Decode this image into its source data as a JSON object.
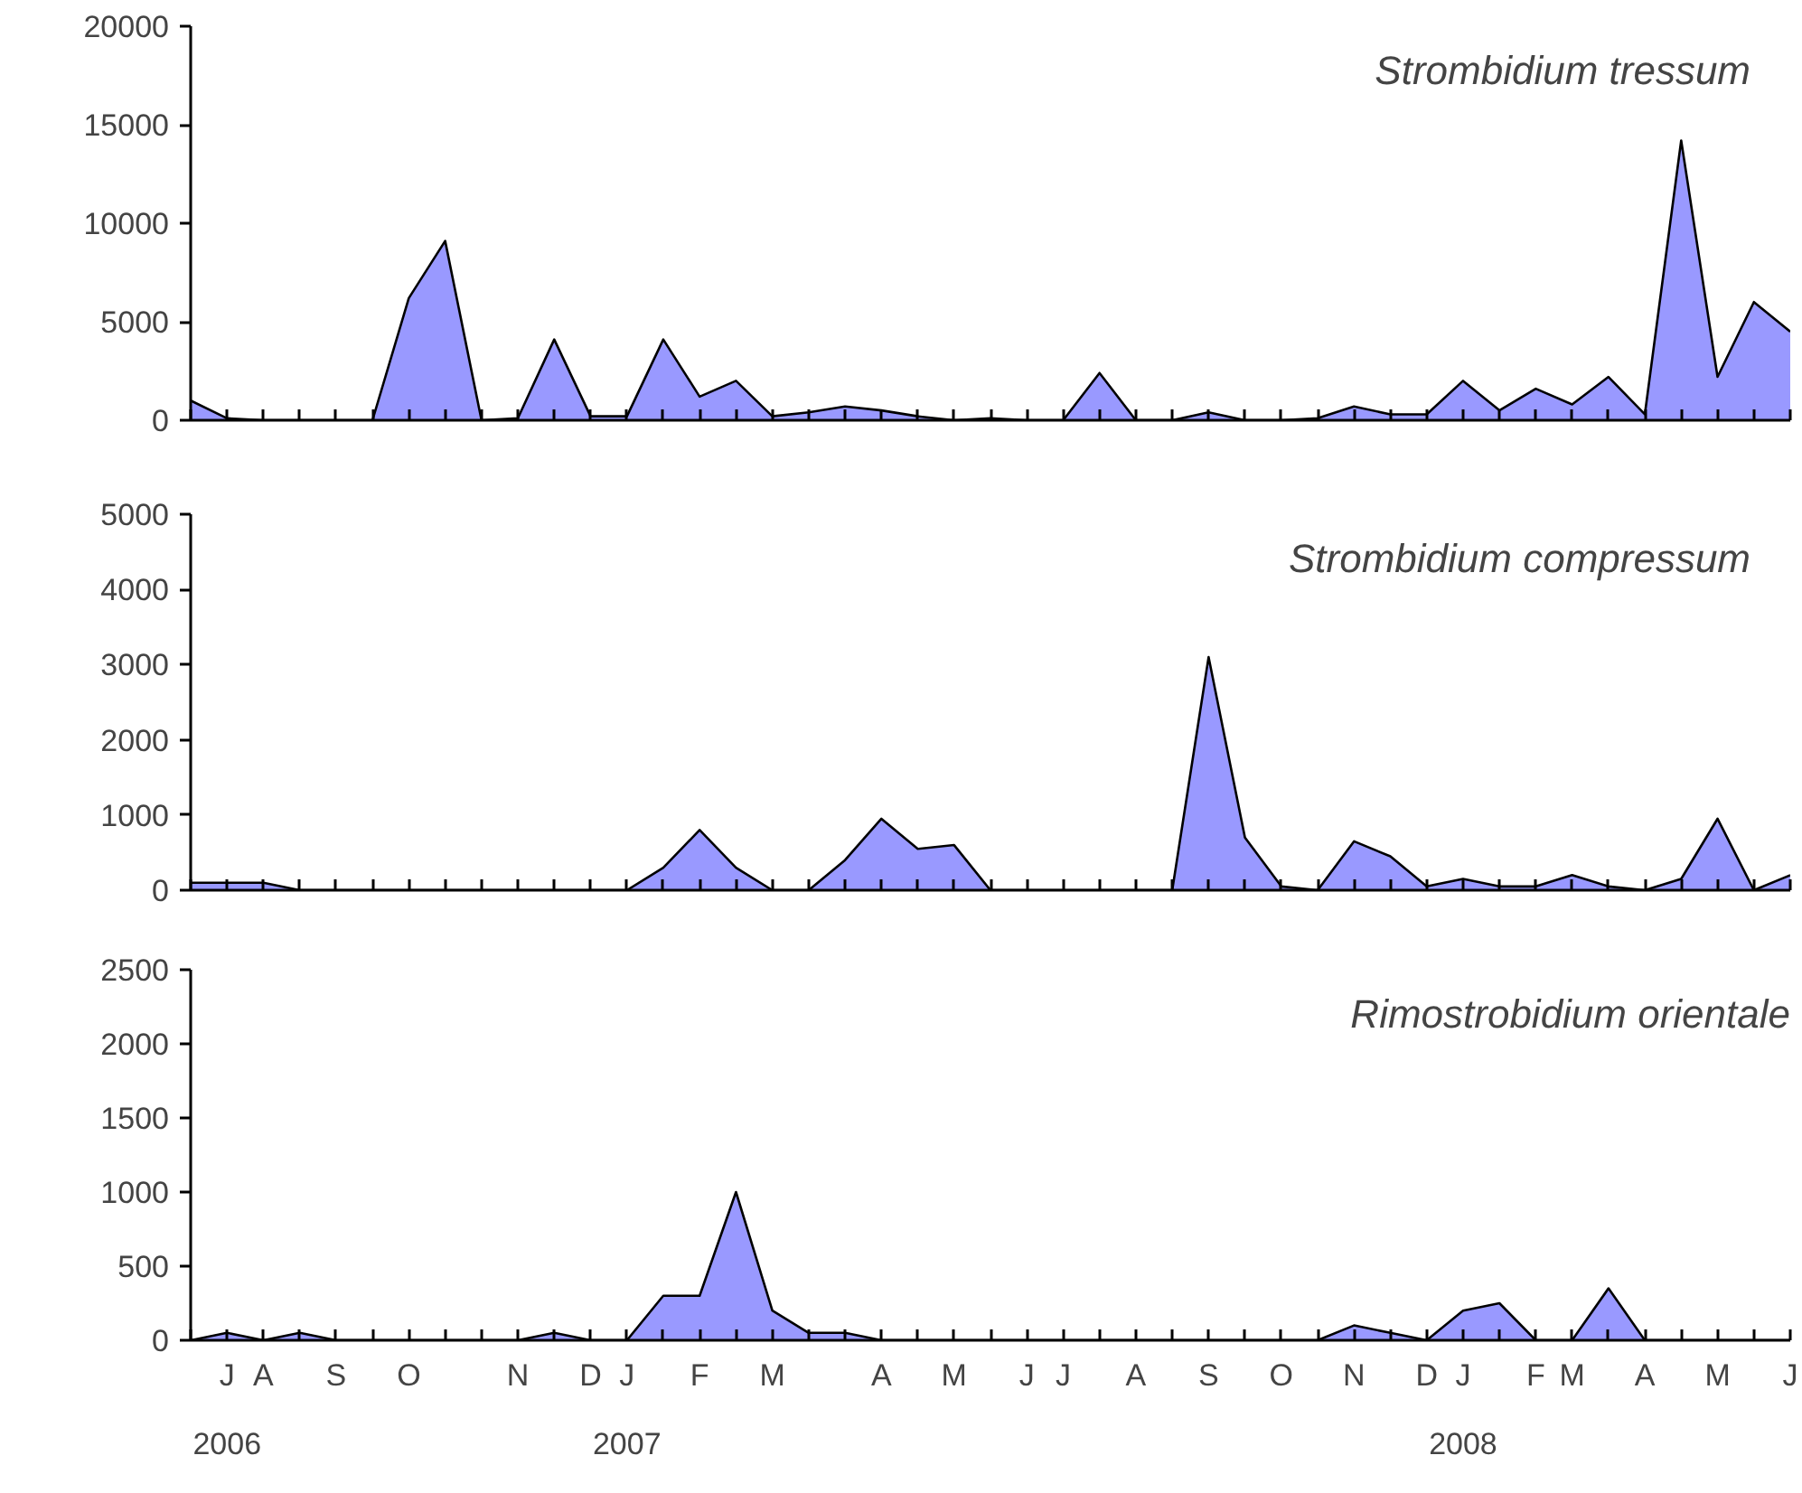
{
  "chart_data": [
    {
      "type": "area",
      "title": "Strombidium tressum",
      "tick_labels": "y",
      "grid": false,
      "ylim": [
        0,
        20000
      ],
      "yticks": [
        0,
        5000,
        10000,
        15000,
        20000
      ],
      "categories": [
        null,
        null,
        null,
        null,
        null,
        null,
        null,
        null,
        null,
        null,
        null,
        null,
        null,
        null,
        null,
        null,
        null,
        null,
        null,
        null,
        null,
        null,
        null,
        null,
        null,
        null,
        null,
        null,
        null,
        null,
        null,
        null,
        null,
        null,
        null,
        null,
        null,
        null,
        null,
        null,
        null,
        null,
        null,
        null,
        null
      ],
      "series": [
        {
          "color": "#9999ff",
          "values": [
            1000,
            100,
            0,
            0,
            0,
            0,
            6200,
            9100,
            0,
            100,
            4100,
            200,
            200,
            4100,
            1200,
            2000,
            200,
            400,
            700,
            500,
            200,
            0,
            100,
            0,
            0,
            2400,
            0,
            0,
            400,
            0,
            0,
            100,
            700,
            300,
            300,
            2000,
            500,
            1600,
            800,
            2200,
            300,
            14200,
            2200,
            6000,
            4500
          ]
        }
      ]
    },
    {
      "type": "area",
      "title": "Strombidium compressum",
      "tick_labels": "y",
      "grid": false,
      "ylim": [
        0,
        5000
      ],
      "yticks": [
        0,
        1000,
        2000,
        3000,
        4000,
        5000
      ],
      "categories": [
        null,
        null,
        null,
        null,
        null,
        null,
        null,
        null,
        null,
        null,
        null,
        null,
        null,
        null,
        null,
        null,
        null,
        null,
        null,
        null,
        null,
        null,
        null,
        null,
        null,
        null,
        null,
        null,
        null,
        null,
        null,
        null,
        null,
        null,
        null,
        null,
        null,
        null,
        null,
        null,
        null,
        null,
        null,
        null,
        null
      ],
      "series": [
        {
          "color": "#9999ff",
          "values": [
            100,
            100,
            100,
            0,
            0,
            0,
            0,
            0,
            0,
            0,
            0,
            0,
            0,
            300,
            800,
            300,
            0,
            0,
            400,
            950,
            550,
            600,
            0,
            0,
            0,
            0,
            0,
            0,
            3100,
            700,
            50,
            0,
            650,
            450,
            50,
            150,
            50,
            50,
            200,
            50,
            0,
            150,
            950,
            0,
            200
          ]
        }
      ]
    },
    {
      "type": "area",
      "title": "Rimostrobidium orientale",
      "grid": false,
      "ylim": [
        0,
        2500
      ],
      "yticks": [
        0,
        500,
        1000,
        1500,
        2000,
        2500
      ],
      "categories": [
        null,
        "J\n2006",
        "A",
        null,
        "S",
        null,
        "O",
        null,
        null,
        "N",
        null,
        "D",
        "J\n2007",
        null,
        "F",
        null,
        "M",
        null,
        null,
        "A",
        null,
        "M",
        null,
        "J",
        "J",
        null,
        "A",
        null,
        "S",
        null,
        "O",
        null,
        "N",
        null,
        "D",
        "J\n2008",
        null,
        "F",
        "M",
        null,
        "A",
        null,
        "M",
        null,
        "J"
      ],
      "series": [
        {
          "color": "#9999ff",
          "values": [
            0,
            50,
            0,
            50,
            0,
            0,
            0,
            0,
            0,
            0,
            50,
            0,
            0,
            300,
            300,
            1000,
            200,
            50,
            50,
            0,
            0,
            0,
            0,
            0,
            0,
            0,
            0,
            0,
            0,
            0,
            0,
            0,
            100,
            50,
            0,
            200,
            250,
            0,
            0,
            350,
            0,
            0,
            0,
            0,
            0
          ]
        }
      ]
    }
  ]
}
